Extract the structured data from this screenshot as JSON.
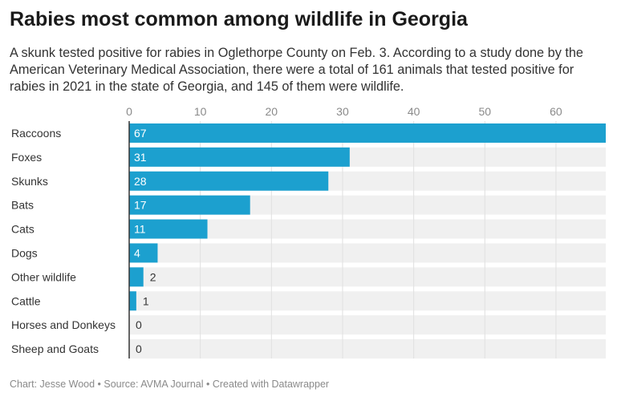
{
  "title": "Rabies most common among wildlife in Georgia",
  "subtitle": "A skunk tested positive for rabies in Oglethorpe County on Feb. 3. According to a study done by the American Veterinary Medical Association, there were a total of 161 animals that tested positive for rabies in 2021 in the state of Georgia, and 145 of them were wildlife.",
  "footer": "Chart: Jesse Wood • Source: AVMA Journal • Created with Datawrapper",
  "colors": {
    "bar": "#1ca0cf",
    "track": "#f0f0f0",
    "grid": "#e0e0e0",
    "axis": "#333333"
  },
  "chart_data": {
    "type": "bar",
    "orientation": "horizontal",
    "categories": [
      "Raccoons",
      "Foxes",
      "Skunks",
      "Bats",
      "Cats",
      "Dogs",
      "Other wildlife",
      "Cattle",
      "Horses and Donkeys",
      "Sheep and Goats"
    ],
    "values": [
      67,
      31,
      28,
      17,
      11,
      4,
      2,
      1,
      0,
      0
    ],
    "x_ticks": [
      0,
      10,
      20,
      30,
      40,
      50,
      60
    ],
    "xlim": [
      0,
      67
    ],
    "grid": true,
    "xaxis_position": "top",
    "data_labels": true
  }
}
